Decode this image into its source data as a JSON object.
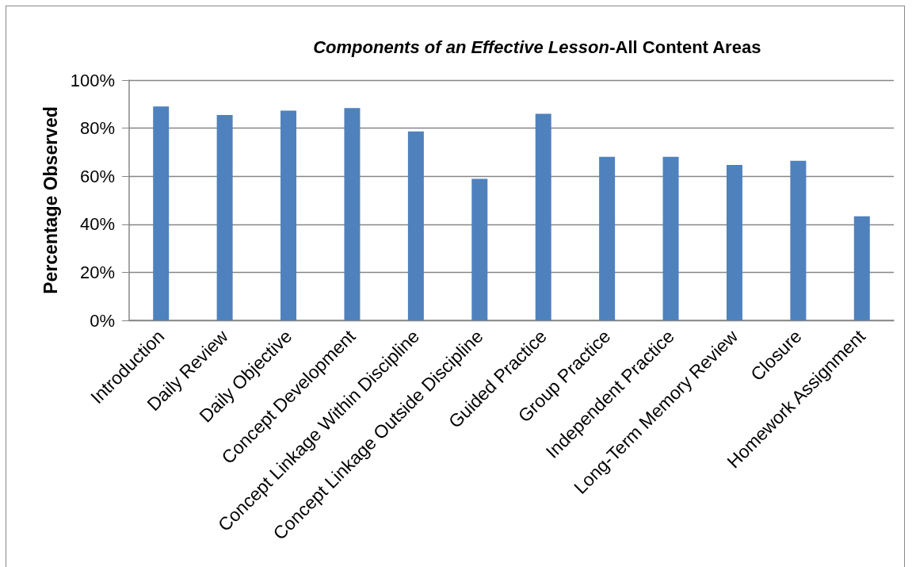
{
  "chart_data": {
    "type": "bar",
    "title": "Components of an Effective Lesson-All Content Areas",
    "ylabel": "Percentage Observed",
    "categories": [
      "Introduction",
      "Daily Review",
      "Daily Objective",
      "Concept Development",
      "Concept Linkage Within Discipline",
      "Concept Linkage Outside Discipline",
      "Guided Practice",
      "Group Practice",
      "Independent Practice",
      "Long-Term Memory Review",
      "Closure",
      "Homework Assignment"
    ],
    "values": [
      89.0,
      85.5,
      87.3,
      88.4,
      78.6,
      58.9,
      86.0,
      68.1,
      68.1,
      64.7,
      66.4,
      43.3
    ],
    "color": "#4f81bd",
    "ylim": [
      0,
      100
    ],
    "yticks": [
      {
        "value": 0,
        "label": "0%"
      },
      {
        "value": 20,
        "label": "20%"
      },
      {
        "value": 40,
        "label": "40%"
      },
      {
        "value": 60,
        "label": "60%"
      },
      {
        "value": 80,
        "label": "80%"
      },
      {
        "value": 100,
        "label": "100%"
      }
    ],
    "grid": "y"
  }
}
